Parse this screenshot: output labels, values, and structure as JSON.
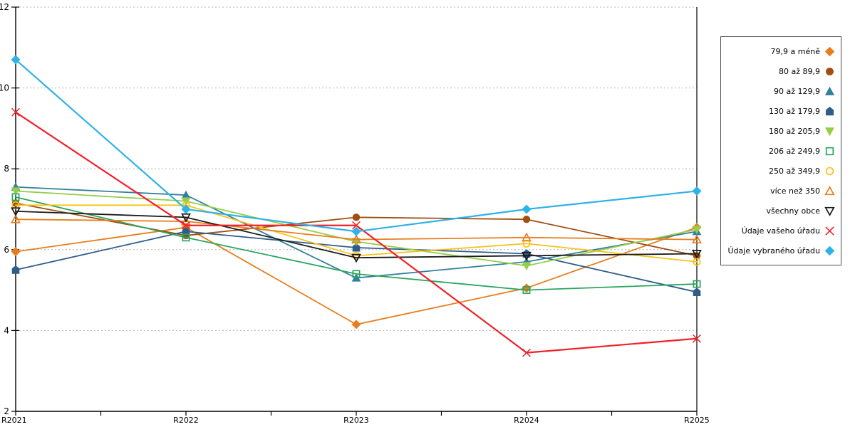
{
  "chart_data": {
    "type": "line",
    "title": "",
    "xlabel": "",
    "ylabel": "",
    "categories": [
      "R2021",
      "R2022",
      "R2023",
      "R2024",
      "R2025"
    ],
    "ylim": [
      2,
      12
    ],
    "yticks": [
      2,
      4,
      6,
      8,
      10,
      12
    ],
    "grid": "horizontal-dotted",
    "grid_color": "#b3b3b3",
    "axis_color": "#000000",
    "legend_position": "right-outside",
    "legend_border_color": "#4d4d4d",
    "series": [
      {
        "name": "79,9 a méně",
        "color": "#E87D1E",
        "marker": "diamond",
        "filled": true,
        "values": [
          5.95,
          6.55,
          4.15,
          5.05,
          6.55
        ]
      },
      {
        "name": "80 až 89,9",
        "color": "#A04F10",
        "marker": "circle",
        "filled": true,
        "values": [
          7.15,
          6.35,
          6.8,
          6.75,
          5.85
        ]
      },
      {
        "name": "90 až 129,9",
        "color": "#33809E",
        "marker": "triangle-up",
        "filled": true,
        "values": [
          7.55,
          7.35,
          5.3,
          5.7,
          6.45
        ]
      },
      {
        "name": "130 až 179,9",
        "color": "#2F5D8A",
        "marker": "pentagon",
        "filled": true,
        "values": [
          5.5,
          6.45,
          6.05,
          5.9,
          4.95
        ]
      },
      {
        "name": "180 až 205,9",
        "color": "#97CE49",
        "marker": "triangle-down",
        "filled": true,
        "values": [
          7.45,
          7.2,
          6.2,
          5.6,
          6.5
        ]
      },
      {
        "name": "206 až 249,9",
        "color": "#2AA55F",
        "marker": "square",
        "filled": false,
        "values": [
          7.3,
          6.3,
          5.4,
          5.0,
          5.15
        ]
      },
      {
        "name": "250 až 349,9",
        "color": "#F7C31A",
        "marker": "circle",
        "filled": false,
        "values": [
          7.1,
          7.1,
          5.85,
          6.15,
          5.7
        ]
      },
      {
        "name": "více než 350",
        "color": "#E87D1E",
        "marker": "triangle-up",
        "filled": false,
        "values": [
          6.75,
          6.7,
          6.25,
          6.3,
          6.25
        ]
      },
      {
        "name": "všechny obce",
        "color": "#1A1A1A",
        "marker": "triangle-down",
        "filled": false,
        "values": [
          6.95,
          6.8,
          5.8,
          5.85,
          5.9
        ]
      },
      {
        "name": "Údaje vašeho úřadu",
        "color": "#F02128",
        "marker": "x",
        "filled": false,
        "values": [
          9.4,
          6.6,
          6.6,
          3.45,
          3.8
        ]
      },
      {
        "name": "Údaje vybraného úřadu",
        "color": "#2FB2E8",
        "marker": "diamond",
        "filled": true,
        "values": [
          10.7,
          7.0,
          6.45,
          7.0,
          7.45
        ]
      }
    ]
  }
}
